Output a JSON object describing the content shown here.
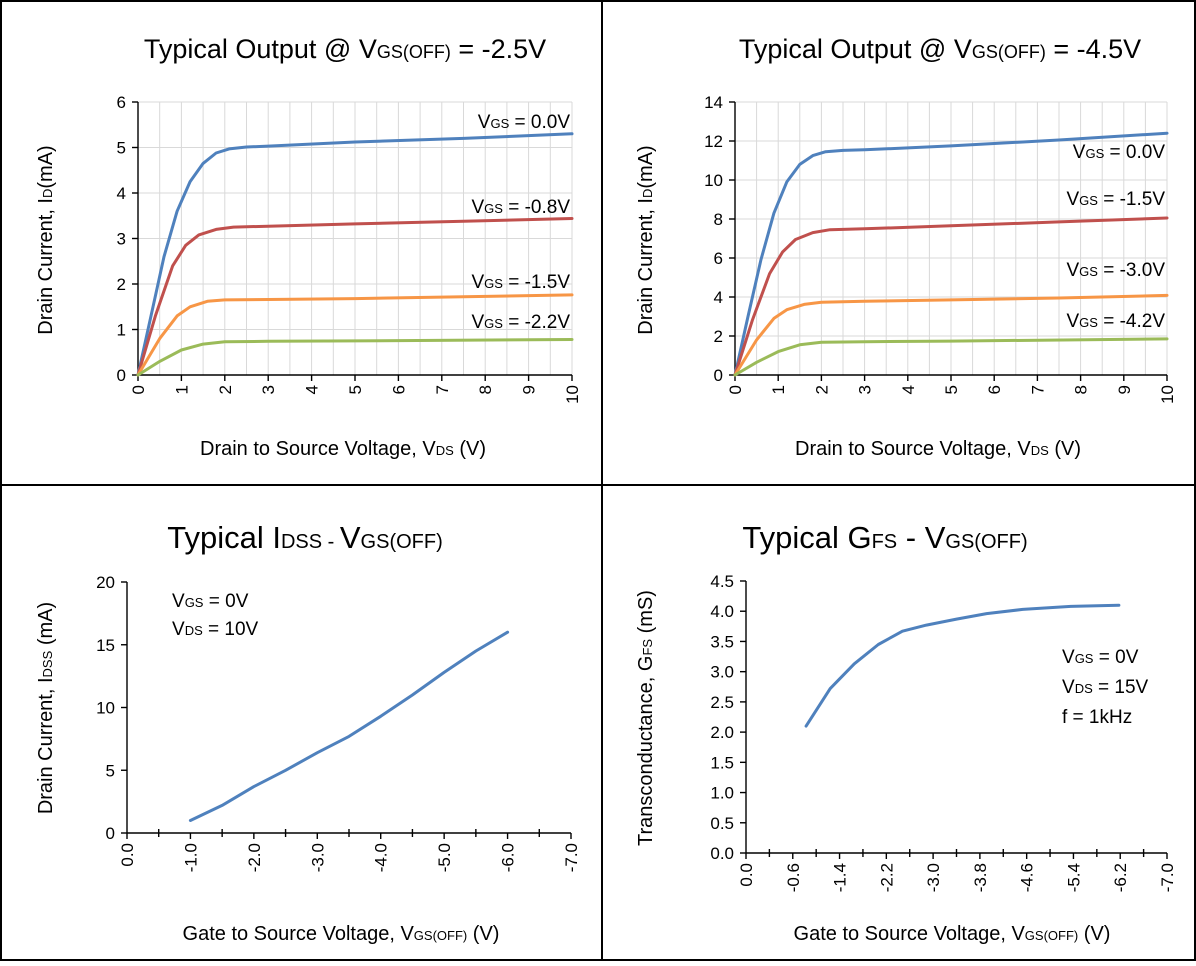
{
  "colors": {
    "blue": "#4f81bd",
    "red": "#c0504d",
    "orange": "#f79646",
    "green": "#9bbb59",
    "grid": "#d9d9d9"
  },
  "chart_data": [
    {
      "type": "line",
      "title": {
        "main": "Typical Output @ V",
        "sub": "GS(OFF)",
        "tail": " = -2.5V"
      },
      "xlabel": {
        "main": "Drain to Source Voltage, V",
        "sub": "DS",
        "tail": " (V)"
      },
      "ylabel": {
        "main": "Drain Current, I",
        "sub": "D",
        "tail": "(mA)"
      },
      "xlim": [
        0,
        10
      ],
      "ylim": [
        0,
        6
      ],
      "xticks": [
        "0",
        "1",
        "2",
        "3",
        "4",
        "5",
        "6",
        "7",
        "8",
        "9",
        "10"
      ],
      "yticks": [
        "0",
        "1",
        "2",
        "3",
        "4",
        "5",
        "6"
      ],
      "series": [
        {
          "color": "#4f81bd",
          "label": {
            "main": "V",
            "sub": "GS",
            "tail": " = 0.0V"
          },
          "points": [
            [
              0,
              0
            ],
            [
              0.3,
              1.3
            ],
            [
              0.6,
              2.6
            ],
            [
              0.9,
              3.6
            ],
            [
              1.2,
              4.25
            ],
            [
              1.5,
              4.65
            ],
            [
              1.8,
              4.88
            ],
            [
              2.1,
              4.97
            ],
            [
              2.5,
              5.01
            ],
            [
              3,
              5.03
            ],
            [
              5,
              5.12
            ],
            [
              7.5,
              5.2
            ],
            [
              10,
              5.3
            ]
          ]
        },
        {
          "color": "#c0504d",
          "label": {
            "main": "V",
            "sub": "GS",
            "tail": " = -0.8V"
          },
          "points": [
            [
              0,
              0
            ],
            [
              0.4,
              1.3
            ],
            [
              0.8,
              2.4
            ],
            [
              1.1,
              2.85
            ],
            [
              1.4,
              3.08
            ],
            [
              1.8,
              3.2
            ],
            [
              2.2,
              3.25
            ],
            [
              3,
              3.27
            ],
            [
              5,
              3.32
            ],
            [
              7.5,
              3.38
            ],
            [
              10,
              3.44
            ]
          ]
        },
        {
          "color": "#f79646",
          "label": {
            "main": "V",
            "sub": "GS",
            "tail": " = -1.5V"
          },
          "points": [
            [
              0,
              0
            ],
            [
              0.5,
              0.8
            ],
            [
              0.9,
              1.3
            ],
            [
              1.2,
              1.5
            ],
            [
              1.6,
              1.62
            ],
            [
              2,
              1.65
            ],
            [
              3,
              1.66
            ],
            [
              5,
              1.68
            ],
            [
              7.5,
              1.72
            ],
            [
              10,
              1.76
            ]
          ]
        },
        {
          "color": "#9bbb59",
          "label": {
            "main": "V",
            "sub": "GS",
            "tail": " = -2.2V"
          },
          "points": [
            [
              0,
              0
            ],
            [
              0.5,
              0.3
            ],
            [
              1,
              0.55
            ],
            [
              1.5,
              0.68
            ],
            [
              2,
              0.73
            ],
            [
              3,
              0.74
            ],
            [
              5,
              0.75
            ],
            [
              10,
              0.78
            ]
          ]
        }
      ]
    },
    {
      "type": "line",
      "title": {
        "main": "Typical Output @ V",
        "sub": "GS(OFF)",
        "tail": " = -4.5V"
      },
      "xlabel": {
        "main": "Drain to Source Voltage, V",
        "sub": "DS",
        "tail": " (V)"
      },
      "ylabel": {
        "main": "Drain Current, I",
        "sub": "D",
        "tail": "(mA)"
      },
      "xlim": [
        0,
        10
      ],
      "ylim": [
        0,
        14
      ],
      "xticks": [
        "0",
        "1",
        "2",
        "3",
        "4",
        "5",
        "6",
        "7",
        "8",
        "9",
        "10"
      ],
      "yticks": [
        "0",
        "2",
        "4",
        "6",
        "8",
        "10",
        "12",
        "14"
      ],
      "series": [
        {
          "color": "#4f81bd",
          "label": {
            "main": "V",
            "sub": "GS",
            "tail": " = 0.0V"
          },
          "points": [
            [
              0,
              0
            ],
            [
              0.3,
              3
            ],
            [
              0.6,
              5.9
            ],
            [
              0.9,
              8.3
            ],
            [
              1.2,
              9.9
            ],
            [
              1.5,
              10.8
            ],
            [
              1.8,
              11.25
            ],
            [
              2.1,
              11.45
            ],
            [
              2.5,
              11.52
            ],
            [
              3,
              11.55
            ],
            [
              5,
              11.75
            ],
            [
              7.5,
              12.05
            ],
            [
              10,
              12.4
            ]
          ]
        },
        {
          "color": "#c0504d",
          "label": {
            "main": "V",
            "sub": "GS",
            "tail": " = -1.5V"
          },
          "points": [
            [
              0,
              0
            ],
            [
              0.4,
              2.8
            ],
            [
              0.8,
              5.2
            ],
            [
              1.1,
              6.3
            ],
            [
              1.4,
              6.95
            ],
            [
              1.8,
              7.3
            ],
            [
              2.2,
              7.45
            ],
            [
              3,
              7.5
            ],
            [
              5,
              7.65
            ],
            [
              7.5,
              7.85
            ],
            [
              10,
              8.05
            ]
          ]
        },
        {
          "color": "#f79646",
          "label": {
            "main": "V",
            "sub": "GS",
            "tail": " = -3.0V"
          },
          "points": [
            [
              0,
              0
            ],
            [
              0.5,
              1.8
            ],
            [
              0.9,
              2.9
            ],
            [
              1.2,
              3.35
            ],
            [
              1.6,
              3.62
            ],
            [
              2,
              3.73
            ],
            [
              3,
              3.78
            ],
            [
              5,
              3.85
            ],
            [
              7.5,
              3.95
            ],
            [
              10,
              4.08
            ]
          ]
        },
        {
          "color": "#9bbb59",
          "label": {
            "main": "V",
            "sub": "GS",
            "tail": " = -4.2V"
          },
          "points": [
            [
              0,
              0
            ],
            [
              0.5,
              0.65
            ],
            [
              1,
              1.2
            ],
            [
              1.5,
              1.55
            ],
            [
              2,
              1.68
            ],
            [
              3,
              1.71
            ],
            [
              5,
              1.74
            ],
            [
              10,
              1.85
            ]
          ]
        }
      ]
    },
    {
      "type": "line",
      "title": {
        "main": "Typical I",
        "sub": "DSS - ",
        "tail": "V",
        "sub2": "GS(OFF)"
      },
      "xlabel": {
        "main": "Gate to Source Voltage, V",
        "sub": "GS(OFF)",
        "tail": " (V)"
      },
      "ylabel": {
        "main": "Drain Current, I",
        "sub": "DSS",
        "tail": " (mA)"
      },
      "xlim": [
        0,
        -7
      ],
      "ylim": [
        0,
        20
      ],
      "xticks": [
        "0.0",
        "-1.0",
        "-2.0",
        "-3.0",
        "-4.0",
        "-5.0",
        "-6.0",
        "-7.0"
      ],
      "yticks": [
        "0",
        "5",
        "10",
        "15",
        "20"
      ],
      "annotation": [
        {
          "main": "V",
          "sub": "GS",
          "tail": " = 0V"
        },
        {
          "main": "V",
          "sub": "DS",
          "tail": " = 10V"
        }
      ],
      "series": [
        {
          "color": "#4f81bd",
          "points": [
            [
              -1,
              1
            ],
            [
              -1.5,
              2.2
            ],
            [
              -2,
              3.7
            ],
            [
              -2.5,
              5
            ],
            [
              -3,
              6.4
            ],
            [
              -3.5,
              7.7
            ],
            [
              -4,
              9.3
            ],
            [
              -4.5,
              11
            ],
            [
              -5,
              12.8
            ],
            [
              -5.5,
              14.5
            ],
            [
              -6,
              16
            ]
          ]
        }
      ]
    },
    {
      "type": "line",
      "title": {
        "main": "Typical G",
        "sub": "FS",
        "tail": " - V",
        "sub2": "GS(OFF)"
      },
      "xlabel": {
        "main": "Gate to Source Voltage, V",
        "sub": "GS(OFF)",
        "tail": " (V)"
      },
      "ylabel": {
        "main": "Transconductance, G",
        "sub": "FS",
        "tail": " (mS)"
      },
      "xlim": [
        0,
        -7
      ],
      "ylim": [
        0,
        4.5
      ],
      "xticks": [
        "0.0",
        "-0.6",
        "-1.4",
        "-2.2",
        "-3.0",
        "-3.8",
        "-4.6",
        "-5.4",
        "-6.2",
        "-7.0"
      ],
      "yticks": [
        "0.0",
        "0.5",
        "1.0",
        "1.5",
        "2.0",
        "2.5",
        "3.0",
        "3.5",
        "4.0",
        "4.5"
      ],
      "annotation": [
        {
          "main": "V",
          "sub": "GS",
          "tail": " = 0V"
        },
        {
          "main": "V",
          "sub": "DS",
          "tail": " = 15V"
        },
        {
          "main": "f = 1kHz",
          "sub": "",
          "tail": ""
        }
      ],
      "series": [
        {
          "color": "#4f81bd",
          "points": [
            [
              -1,
              2.1
            ],
            [
              -1.4,
              2.72
            ],
            [
              -1.8,
              3.13
            ],
            [
              -2.2,
              3.45
            ],
            [
              -2.6,
              3.67
            ],
            [
              -3,
              3.77
            ],
            [
              -3.5,
              3.87
            ],
            [
              -4,
              3.96
            ],
            [
              -4.6,
              4.03
            ],
            [
              -5.4,
              4.08
            ],
            [
              -6.2,
              4.1
            ]
          ]
        }
      ]
    }
  ]
}
